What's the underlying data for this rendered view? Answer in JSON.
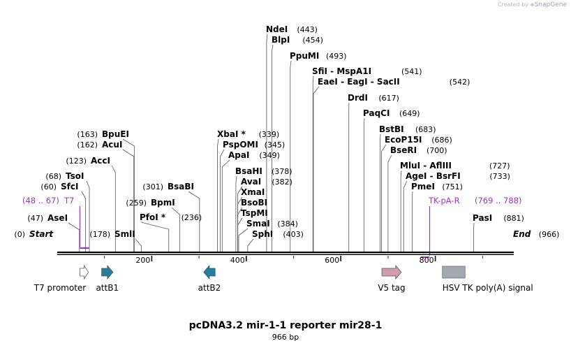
{
  "credit": {
    "prefix": "Created by",
    "brand": "SnapGene"
  },
  "title": "pcDNA3.2 mir-1-1 reporter mir28-1",
  "length_label": "966 bp",
  "sequence_length": 966,
  "colors": {
    "primer": "#9b30d0",
    "attB": "#2a7d9a",
    "v5": "#d29bb4",
    "hsv": "#a3a9b1",
    "t7": "#ffffff"
  },
  "ruler": {
    "ticks": [
      "200",
      "400",
      "600",
      "800"
    ]
  },
  "sites": [
    {
      "name": "Start",
      "pos": "(0)",
      "bp": 0,
      "italic": true
    },
    {
      "name": "AseI",
      "pos": "(47)",
      "bp": 47
    },
    {
      "name": "SfcI",
      "pos": "(60)",
      "bp": 60
    },
    {
      "name": "TsoI",
      "pos": "(68)",
      "bp": 68
    },
    {
      "name": "AccI",
      "pos": "(123)",
      "bp": 123
    },
    {
      "name": "AcuI",
      "pos": "(162)",
      "bp": 162
    },
    {
      "name": "BpuEI",
      "pos": "(163)",
      "bp": 163
    },
    {
      "name": "SmlI",
      "pos": "(178)",
      "bp": 178
    },
    {
      "name": "PfoI *",
      "pos": "(236)",
      "bp": 236
    },
    {
      "name": "BpmI",
      "pos": "(259)",
      "bp": 259
    },
    {
      "name": "BsaBI",
      "pos": "(301)",
      "bp": 301
    },
    {
      "name": "XbaI *",
      "pos": "(339)",
      "bp": 339
    },
    {
      "name": "PspOMI",
      "pos": "(345)",
      "bp": 345
    },
    {
      "name": "ApaI",
      "pos": "(349)",
      "bp": 349
    },
    {
      "name": "BsaHI",
      "pos": "(378)",
      "bp": 378
    },
    {
      "name": "AvaI",
      "pos": "(382)",
      "bp": 382
    },
    {
      "name": "XmaI",
      "pos": "",
      "bp": 382
    },
    {
      "name": "BsoBI",
      "pos": "",
      "bp": 382
    },
    {
      "name": "TspMI",
      "pos": "",
      "bp": 382
    },
    {
      "name": "SmaI",
      "pos": "(384)",
      "bp": 384
    },
    {
      "name": "SphI",
      "pos": "(403)",
      "bp": 403
    },
    {
      "name": "NdeI",
      "pos": "(443)",
      "bp": 443
    },
    {
      "name": "BlpI",
      "pos": "(454)",
      "bp": 454
    },
    {
      "name": "PpuMI",
      "pos": "(493)",
      "bp": 493
    },
    {
      "name": "SfiI  -  MspA1I",
      "pos": "(541)",
      "bp": 541
    },
    {
      "name": "EaeI  -  EagI  -  SacII",
      "pos": "(542)",
      "bp": 542
    },
    {
      "name": "DrdI",
      "pos": "(617)",
      "bp": 617
    },
    {
      "name": "PaqCI",
      "pos": "(649)",
      "bp": 649
    },
    {
      "name": "BstBI",
      "pos": "(683)",
      "bp": 683
    },
    {
      "name": "EcoP15I",
      "pos": "(686)",
      "bp": 686
    },
    {
      "name": "BseRI",
      "pos": "(700)",
      "bp": 700
    },
    {
      "name": "MluI  -  AflIII",
      "pos": "(727)",
      "bp": 727
    },
    {
      "name": "AgeI  -  BsrFI",
      "pos": "(733)",
      "bp": 733
    },
    {
      "name": "PmeI",
      "pos": "(751)",
      "bp": 751
    },
    {
      "name": "PasI",
      "pos": "(881)",
      "bp": 881
    },
    {
      "name": "End",
      "pos": "(966)",
      "bp": 966,
      "italic": true
    }
  ],
  "primers": [
    {
      "name": "T7",
      "range": "(48 .. 67)",
      "start": 48,
      "end": 67
    },
    {
      "name": "TK-pA-R",
      "range": "(769 .. 788)",
      "start": 769,
      "end": 788
    }
  ],
  "features": [
    {
      "name": "T7 promoter",
      "start": 48,
      "end": 66,
      "shape": "arrow",
      "color": "t7"
    },
    {
      "name": "attB1",
      "start": 94,
      "end": 118,
      "shape": "arrow",
      "color": "attB"
    },
    {
      "name": "attB2",
      "start": 310,
      "end": 334,
      "shape": "arrow-left",
      "color": "attB"
    },
    {
      "name": "V5 tag",
      "start": 687,
      "end": 728,
      "shape": "arrow",
      "color": "v5"
    },
    {
      "name": "HSV TK poly(A) signal",
      "start": 815,
      "end": 863,
      "shape": "box",
      "color": "hsv"
    }
  ]
}
